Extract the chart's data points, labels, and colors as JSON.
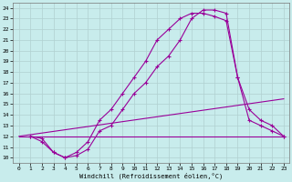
{
  "xlabel": "Windchill (Refroidissement éolien,°C)",
  "bg_color": "#c8ecec",
  "line_color": "#990099",
  "grid_color": "#b0d0d0",
  "xlim": [
    -0.5,
    23.5
  ],
  "ylim": [
    9.5,
    24.5
  ],
  "yticks": [
    10,
    11,
    12,
    13,
    14,
    15,
    16,
    17,
    18,
    19,
    20,
    21,
    22,
    23,
    24
  ],
  "xticks": [
    0,
    1,
    2,
    3,
    4,
    5,
    6,
    7,
    8,
    9,
    10,
    11,
    12,
    13,
    14,
    15,
    16,
    17,
    18,
    19,
    20,
    21,
    22,
    23
  ],
  "lines": [
    {
      "x": [
        1,
        2,
        3,
        4,
        5,
        6,
        7,
        8,
        9,
        10,
        11,
        12,
        13,
        14,
        15,
        16,
        17,
        18,
        19,
        20,
        21,
        22,
        23
      ],
      "y": [
        12,
        11.8,
        10.5,
        10.0,
        10.5,
        11.5,
        13.5,
        14.5,
        16.0,
        17.5,
        19.0,
        21.0,
        22.0,
        23.0,
        23.5,
        23.5,
        23.2,
        22.8,
        17.5,
        13.5,
        13.0,
        12.5,
        12.0
      ],
      "marker": true
    },
    {
      "x": [
        1,
        2,
        3,
        4,
        5,
        6,
        7,
        8,
        9,
        10,
        11,
        12,
        13,
        14,
        15,
        16,
        17,
        18,
        19,
        20,
        21,
        22,
        23
      ],
      "y": [
        12,
        11.5,
        10.5,
        10.0,
        10.2,
        10.8,
        12.5,
        13.0,
        14.5,
        16.0,
        17.0,
        18.5,
        19.5,
        21.0,
        23.0,
        23.8,
        23.8,
        23.5,
        17.5,
        14.5,
        13.5,
        13.0,
        12.0
      ],
      "marker": true
    },
    {
      "x": [
        0,
        23
      ],
      "y": [
        12,
        12
      ],
      "marker": false
    },
    {
      "x": [
        0,
        23
      ],
      "y": [
        12,
        15.5
      ],
      "marker": false
    }
  ]
}
